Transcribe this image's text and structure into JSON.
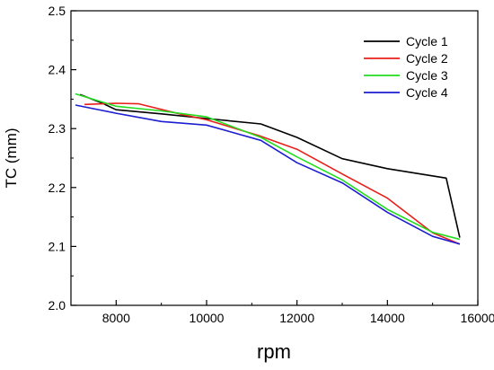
{
  "chart_data": {
    "type": "line",
    "title": "",
    "xlabel": "rpm",
    "ylabel": "TC (mm)",
    "xlim": [
      7000,
      16000
    ],
    "ylim": [
      2.0,
      2.5
    ],
    "x_ticks": [
      8000,
      10000,
      12000,
      14000,
      16000
    ],
    "x_tick_labels": [
      "8000",
      "10000",
      "12000",
      "14000",
      "16000"
    ],
    "y_ticks": [
      2.0,
      2.1,
      2.2,
      2.3,
      2.4,
      2.5
    ],
    "y_tick_labels": [
      "2.0",
      "2.1",
      "2.2",
      "2.3",
      "2.4",
      "2.5"
    ],
    "grid": false,
    "legend_position": "top-right",
    "series": [
      {
        "name": "Cycle 1",
        "color": "#000000",
        "points": [
          [
            7200,
            2.358
          ],
          [
            7700,
            2.343
          ],
          [
            8000,
            2.332
          ],
          [
            9000,
            2.325
          ],
          [
            10000,
            2.317
          ],
          [
            11200,
            2.308
          ],
          [
            12000,
            2.285
          ],
          [
            13000,
            2.249
          ],
          [
            14000,
            2.232
          ],
          [
            15300,
            2.216
          ],
          [
            15600,
            2.115
          ]
        ]
      },
      {
        "name": "Cycle 2",
        "color": "#e8201c",
        "points": [
          [
            7300,
            2.341
          ],
          [
            8000,
            2.343
          ],
          [
            8500,
            2.342
          ],
          [
            9400,
            2.325
          ],
          [
            10000,
            2.315
          ],
          [
            11200,
            2.287
          ],
          [
            12000,
            2.265
          ],
          [
            13000,
            2.223
          ],
          [
            14000,
            2.182
          ],
          [
            15000,
            2.123
          ],
          [
            15600,
            2.104
          ]
        ]
      },
      {
        "name": "Cycle 3",
        "color": "#23dd1f",
        "points": [
          [
            7100,
            2.359
          ],
          [
            8000,
            2.338
          ],
          [
            9000,
            2.33
          ],
          [
            10000,
            2.32
          ],
          [
            11200,
            2.285
          ],
          [
            12000,
            2.252
          ],
          [
            13000,
            2.213
          ],
          [
            14000,
            2.163
          ],
          [
            15000,
            2.124
          ],
          [
            15600,
            2.112
          ]
        ]
      },
      {
        "name": "Cycle 4",
        "color": "#1d1dd1",
        "points": [
          [
            7100,
            2.34
          ],
          [
            8000,
            2.326
          ],
          [
            9000,
            2.312
          ],
          [
            10000,
            2.306
          ],
          [
            11200,
            2.28
          ],
          [
            12000,
            2.242
          ],
          [
            13000,
            2.208
          ],
          [
            14000,
            2.158
          ],
          [
            15000,
            2.117
          ],
          [
            15600,
            2.104
          ]
        ]
      }
    ]
  }
}
